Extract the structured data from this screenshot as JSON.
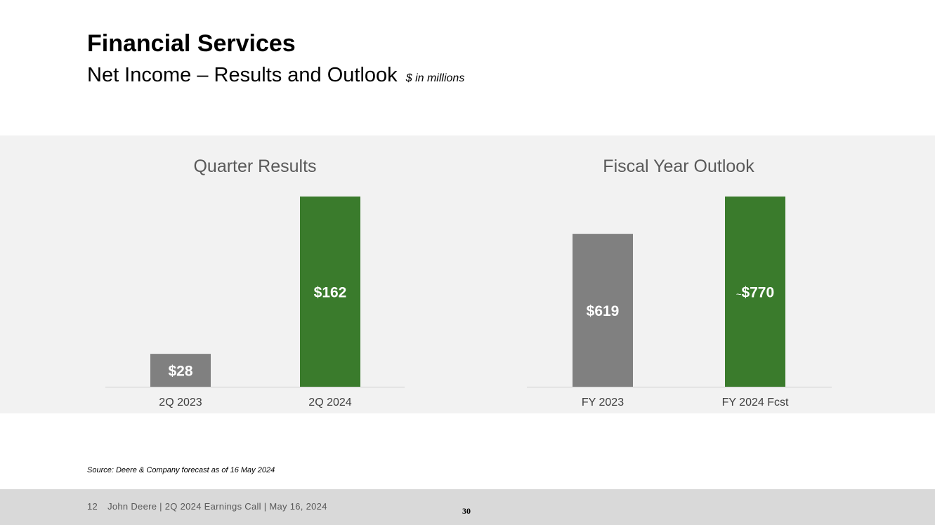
{
  "header": {
    "title": "Financial Services",
    "subtitle": "Net Income – Results and Outlook",
    "units": "$ in millions"
  },
  "colors": {
    "actual": "#808080",
    "current": "#3a7b2c",
    "band": "#f2f2f2"
  },
  "chart_data": [
    {
      "type": "bar",
      "title": "Quarter Results",
      "categories": [
        "2Q 2023",
        "2Q 2024"
      ],
      "values": [
        28,
        162
      ],
      "data_labels": [
        "$28",
        "$162"
      ],
      "ylim": [
        0,
        162
      ],
      "grid": false
    },
    {
      "type": "bar",
      "title": "Fiscal Year Outlook",
      "categories": [
        "FY 2023",
        "FY 2024 Fcst"
      ],
      "values": [
        619,
        770
      ],
      "data_labels": [
        "$619",
        "$770"
      ],
      "label_prefix": [
        null,
        "~"
      ],
      "ylim": [
        0,
        770
      ],
      "grid": false
    }
  ],
  "source": "Source: Deere & Company forecast as of 16 May 2024",
  "footer": {
    "slide_number": "12",
    "text": "John Deere | 2Q 2024 Earnings Call | May 16, 2024",
    "page_number": "30"
  }
}
